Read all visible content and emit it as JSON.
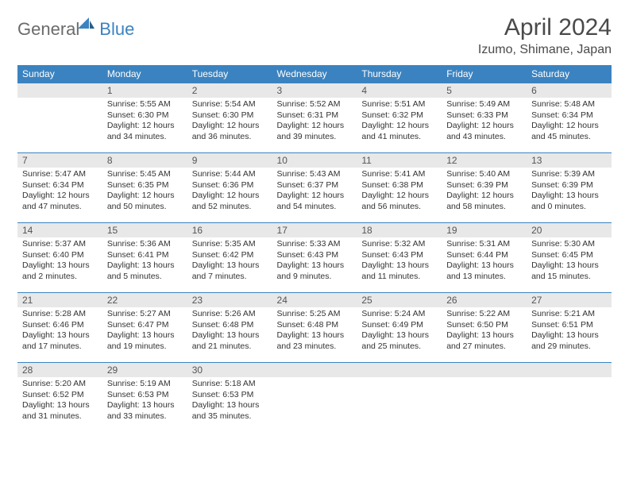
{
  "brand": {
    "word1": "General",
    "word2": "Blue"
  },
  "title": "April 2024",
  "location": "Izumo, Shimane, Japan",
  "colors": {
    "accent": "#3b83c0",
    "header_bg": "#3b83c0",
    "header_fg": "#ffffff",
    "daynum_bg": "#e8e8e8",
    "body_text": "#333333",
    "logo_gray": "#6b6b6b"
  },
  "weekdays": [
    "Sunday",
    "Monday",
    "Tuesday",
    "Wednesday",
    "Thursday",
    "Friday",
    "Saturday"
  ],
  "weeks": [
    [
      {
        "n": "",
        "lines": []
      },
      {
        "n": "1",
        "lines": [
          "Sunrise: 5:55 AM",
          "Sunset: 6:30 PM",
          "Daylight: 12 hours",
          "and 34 minutes."
        ]
      },
      {
        "n": "2",
        "lines": [
          "Sunrise: 5:54 AM",
          "Sunset: 6:30 PM",
          "Daylight: 12 hours",
          "and 36 minutes."
        ]
      },
      {
        "n": "3",
        "lines": [
          "Sunrise: 5:52 AM",
          "Sunset: 6:31 PM",
          "Daylight: 12 hours",
          "and 39 minutes."
        ]
      },
      {
        "n": "4",
        "lines": [
          "Sunrise: 5:51 AM",
          "Sunset: 6:32 PM",
          "Daylight: 12 hours",
          "and 41 minutes."
        ]
      },
      {
        "n": "5",
        "lines": [
          "Sunrise: 5:49 AM",
          "Sunset: 6:33 PM",
          "Daylight: 12 hours",
          "and 43 minutes."
        ]
      },
      {
        "n": "6",
        "lines": [
          "Sunrise: 5:48 AM",
          "Sunset: 6:34 PM",
          "Daylight: 12 hours",
          "and 45 minutes."
        ]
      }
    ],
    [
      {
        "n": "7",
        "lines": [
          "Sunrise: 5:47 AM",
          "Sunset: 6:34 PM",
          "Daylight: 12 hours",
          "and 47 minutes."
        ]
      },
      {
        "n": "8",
        "lines": [
          "Sunrise: 5:45 AM",
          "Sunset: 6:35 PM",
          "Daylight: 12 hours",
          "and 50 minutes."
        ]
      },
      {
        "n": "9",
        "lines": [
          "Sunrise: 5:44 AM",
          "Sunset: 6:36 PM",
          "Daylight: 12 hours",
          "and 52 minutes."
        ]
      },
      {
        "n": "10",
        "lines": [
          "Sunrise: 5:43 AM",
          "Sunset: 6:37 PM",
          "Daylight: 12 hours",
          "and 54 minutes."
        ]
      },
      {
        "n": "11",
        "lines": [
          "Sunrise: 5:41 AM",
          "Sunset: 6:38 PM",
          "Daylight: 12 hours",
          "and 56 minutes."
        ]
      },
      {
        "n": "12",
        "lines": [
          "Sunrise: 5:40 AM",
          "Sunset: 6:39 PM",
          "Daylight: 12 hours",
          "and 58 minutes."
        ]
      },
      {
        "n": "13",
        "lines": [
          "Sunrise: 5:39 AM",
          "Sunset: 6:39 PM",
          "Daylight: 13 hours",
          "and 0 minutes."
        ]
      }
    ],
    [
      {
        "n": "14",
        "lines": [
          "Sunrise: 5:37 AM",
          "Sunset: 6:40 PM",
          "Daylight: 13 hours",
          "and 2 minutes."
        ]
      },
      {
        "n": "15",
        "lines": [
          "Sunrise: 5:36 AM",
          "Sunset: 6:41 PM",
          "Daylight: 13 hours",
          "and 5 minutes."
        ]
      },
      {
        "n": "16",
        "lines": [
          "Sunrise: 5:35 AM",
          "Sunset: 6:42 PM",
          "Daylight: 13 hours",
          "and 7 minutes."
        ]
      },
      {
        "n": "17",
        "lines": [
          "Sunrise: 5:33 AM",
          "Sunset: 6:43 PM",
          "Daylight: 13 hours",
          "and 9 minutes."
        ]
      },
      {
        "n": "18",
        "lines": [
          "Sunrise: 5:32 AM",
          "Sunset: 6:43 PM",
          "Daylight: 13 hours",
          "and 11 minutes."
        ]
      },
      {
        "n": "19",
        "lines": [
          "Sunrise: 5:31 AM",
          "Sunset: 6:44 PM",
          "Daylight: 13 hours",
          "and 13 minutes."
        ]
      },
      {
        "n": "20",
        "lines": [
          "Sunrise: 5:30 AM",
          "Sunset: 6:45 PM",
          "Daylight: 13 hours",
          "and 15 minutes."
        ]
      }
    ],
    [
      {
        "n": "21",
        "lines": [
          "Sunrise: 5:28 AM",
          "Sunset: 6:46 PM",
          "Daylight: 13 hours",
          "and 17 minutes."
        ]
      },
      {
        "n": "22",
        "lines": [
          "Sunrise: 5:27 AM",
          "Sunset: 6:47 PM",
          "Daylight: 13 hours",
          "and 19 minutes."
        ]
      },
      {
        "n": "23",
        "lines": [
          "Sunrise: 5:26 AM",
          "Sunset: 6:48 PM",
          "Daylight: 13 hours",
          "and 21 minutes."
        ]
      },
      {
        "n": "24",
        "lines": [
          "Sunrise: 5:25 AM",
          "Sunset: 6:48 PM",
          "Daylight: 13 hours",
          "and 23 minutes."
        ]
      },
      {
        "n": "25",
        "lines": [
          "Sunrise: 5:24 AM",
          "Sunset: 6:49 PM",
          "Daylight: 13 hours",
          "and 25 minutes."
        ]
      },
      {
        "n": "26",
        "lines": [
          "Sunrise: 5:22 AM",
          "Sunset: 6:50 PM",
          "Daylight: 13 hours",
          "and 27 minutes."
        ]
      },
      {
        "n": "27",
        "lines": [
          "Sunrise: 5:21 AM",
          "Sunset: 6:51 PM",
          "Daylight: 13 hours",
          "and 29 minutes."
        ]
      }
    ],
    [
      {
        "n": "28",
        "lines": [
          "Sunrise: 5:20 AM",
          "Sunset: 6:52 PM",
          "Daylight: 13 hours",
          "and 31 minutes."
        ]
      },
      {
        "n": "29",
        "lines": [
          "Sunrise: 5:19 AM",
          "Sunset: 6:53 PM",
          "Daylight: 13 hours",
          "and 33 minutes."
        ]
      },
      {
        "n": "30",
        "lines": [
          "Sunrise: 5:18 AM",
          "Sunset: 6:53 PM",
          "Daylight: 13 hours",
          "and 35 minutes."
        ]
      },
      {
        "n": "",
        "lines": []
      },
      {
        "n": "",
        "lines": []
      },
      {
        "n": "",
        "lines": []
      },
      {
        "n": "",
        "lines": []
      }
    ]
  ]
}
